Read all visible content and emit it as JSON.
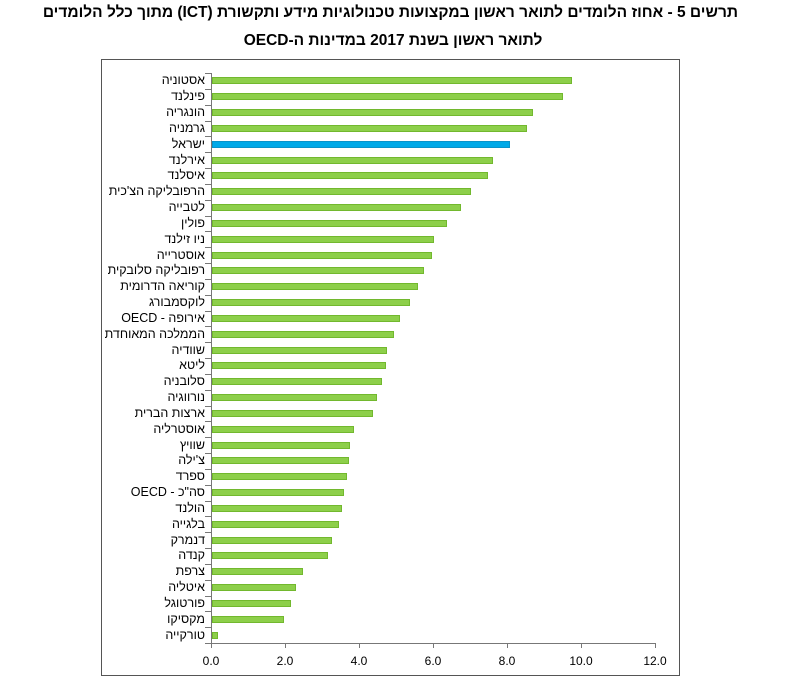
{
  "chart_data": {
    "type": "bar",
    "orientation": "horizontal",
    "title": "תרשים 5 - אחוז הלומדים לתואר ראשון במקצועות טכנולוגיות מידע ותקשורת (ICT) מתוך כלל הלומדים",
    "subtitle": "לתואר ראשון בשנת 2017 במדינות ה-OECD",
    "xlabel": "",
    "ylabel": "",
    "xlim": [
      0,
      12
    ],
    "x_ticks": [
      "0.0",
      "2.0",
      "4.0",
      "6.0",
      "8.0",
      "10.0",
      "12.0"
    ],
    "grid": false,
    "colors": {
      "default": "#8dcf4a",
      "highlight": "#00a9e8"
    },
    "highlight": "ישראל",
    "categories": [
      "אסטוניה",
      "פינלנד",
      "הונגריה",
      "גרמניה",
      "ישראל",
      "אירלנד",
      "איסלנד",
      "הרפובליקה הצ'כית",
      "לטבייה",
      "פולין",
      "ניו זילנד",
      "אוסטרייה",
      "רפובליקה סלובקית",
      "קוריאה הדרומית",
      "לוקסמבורג",
      "אירופה - OECD",
      "הממלכה המאוחדת",
      "שוודיה",
      "ליטא",
      "סלובניה",
      "נורווגיה",
      "ארצות הברית",
      "אוסטרליה",
      "שוויץ",
      "צ'ילה",
      "ספרד",
      "סה\"כ - OECD",
      "הולנד",
      "בלגייה",
      "דנמרק",
      "קנדה",
      "צרפת",
      "איטליה",
      "פורטוגל",
      "מקסיקו",
      "טורקייה"
    ],
    "values": [
      9.73,
      9.49,
      8.68,
      8.52,
      8.06,
      7.6,
      7.46,
      7.0,
      6.73,
      6.35,
      5.99,
      5.94,
      5.72,
      5.58,
      5.34,
      5.07,
      4.93,
      4.74,
      4.71,
      4.6,
      4.47,
      4.36,
      3.85,
      3.74,
      3.69,
      3.66,
      3.58,
      3.5,
      3.42,
      3.24,
      3.13,
      2.46,
      2.27,
      2.14,
      1.95,
      0.17
    ]
  }
}
